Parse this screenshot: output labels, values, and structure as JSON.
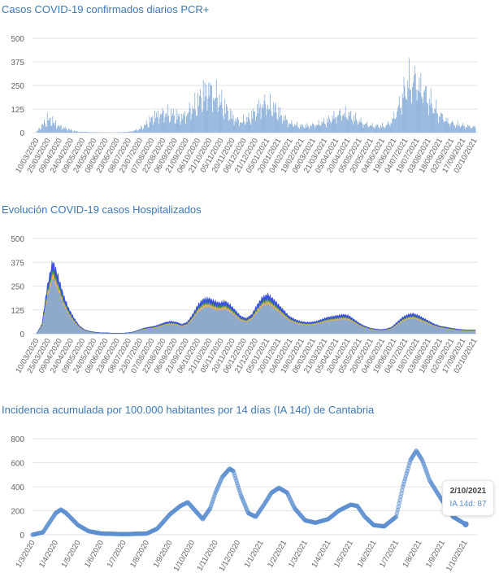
{
  "charts": [
    {
      "title": "Casos COVID-19 confirmados diarios PCR+",
      "type": "bar",
      "color": "#7fa7d6",
      "start_date": "2020-03-10",
      "step_days": 7,
      "end_date": "2021-10-02",
      "yticks": [
        "0",
        "125",
        "250",
        "375",
        "500"
      ],
      "ylim": [
        0,
        500
      ],
      "xticks": [
        "10/03/2020",
        "25/03/2020",
        "09/04/2020",
        "24/04/2020",
        "09/05/2020",
        "24/05/2020",
        "08/06/2020",
        "23/06/2020",
        "08/07/2020",
        "23/07/2020",
        "07/08/2020",
        "22/08/2020",
        "06/09/2020",
        "21/09/2020",
        "06/10/2020",
        "21/10/2020",
        "05/11/2020",
        "20/11/2020",
        "05/12/2020",
        "20/12/2020",
        "04/01/2021",
        "19/01/2021",
        "03/02/2021",
        "18/02/2021",
        "05/03/2021",
        "20/03/2021",
        "04/04/2021",
        "19/04/2021",
        "04/05/2021",
        "19/05/2021",
        "03/06/2021",
        "18/06/2021",
        "03/07/2021",
        "18/07/2021",
        "02/08/2021",
        "17/08/2021",
        "01/09/2021",
        "16/09/2021",
        "01/10/2021"
      ],
      "xtick_labels": [
        "10/03/2020",
        "25/03/2020",
        "09/04/2020",
        "24/04/2020",
        "09/05/2020",
        "24/05/2020",
        "08/06/2020",
        "23/06/2020",
        "08/07/2020",
        "23/07/2020",
        "07/08/2020",
        "22/08/2020",
        "06/09/2020",
        "21/09/2020",
        "06/10/2020",
        "21/10/2020",
        "05/11/2020",
        "20/11/2020",
        "06/12/2020",
        "21/12/2020",
        "05/01/2021",
        "20/01/2021",
        "04/02/2021",
        "19/02/2021",
        "06/03/2021",
        "21/03/2021",
        "05/04/2021",
        "20/04/2021",
        "05/05/2021",
        "20/05/2021",
        "04/06/2021",
        "19/06/2021",
        "04/07/2021",
        "19/07/2021",
        "03/08/2021",
        "18/08/2021",
        "02/09/2021",
        "17/09/2021",
        "02/10/2021"
      ],
      "values": [
        5,
        40,
        80,
        70,
        40,
        30,
        20,
        10,
        5,
        5,
        3,
        3,
        2,
        2,
        2,
        2,
        3,
        5,
        10,
        20,
        40,
        70,
        100,
        110,
        120,
        110,
        100,
        90,
        120,
        150,
        180,
        230,
        260,
        240,
        200,
        150,
        110,
        80,
        70,
        80,
        100,
        140,
        180,
        170,
        150,
        120,
        90,
        60,
        50,
        40,
        40,
        45,
        50,
        60,
        70,
        90,
        110,
        120,
        110,
        90,
        70,
        55,
        45,
        40,
        40,
        45,
        70,
        130,
        220,
        300,
        330,
        300,
        250,
        200,
        150,
        110,
        80,
        60,
        50,
        45,
        40,
        35
      ]
    },
    {
      "title": "Evolución COVID-19 casos  Hospitalizados",
      "type": "area",
      "start_date": "2020-03-10",
      "step_days": 7,
      "yticks": [
        "0",
        "125",
        "250",
        "375",
        "500"
      ],
      "ylim": [
        0,
        500
      ],
      "xtick_labels": [
        "10/03/2020",
        "25/03/2020",
        "09/04/2020",
        "24/04/2020",
        "09/05/2020",
        "24/05/2020",
        "08/06/2020",
        "23/06/2020",
        "08/07/2020",
        "23/07/2020",
        "07/08/2020",
        "22/08/2020",
        "06/09/2020",
        "21/09/2020",
        "06/10/2020",
        "21/10/2020",
        "05/11/2020",
        "20/11/2020",
        "06/12/2020",
        "21/12/2020",
        "05/01/2021",
        "20/01/2021",
        "04/02/2021",
        "19/02/2021",
        "06/03/2021",
        "21/03/2021",
        "05/04/2021",
        "20/04/2021",
        "05/05/2021",
        "20/05/2021",
        "04/06/2021",
        "19/06/2021",
        "04/07/2021",
        "19/07/2021",
        "03/08/2021",
        "18/08/2021",
        "02/09/2021",
        "17/09/2021",
        "02/10/2021"
      ],
      "total": [
        0,
        50,
        250,
        380,
        300,
        200,
        130,
        80,
        40,
        20,
        12,
        8,
        5,
        5,
        3,
        3,
        3,
        5,
        10,
        20,
        30,
        35,
        40,
        50,
        60,
        65,
        60,
        50,
        60,
        100,
        150,
        180,
        185,
        170,
        160,
        170,
        150,
        120,
        90,
        80,
        100,
        150,
        190,
        205,
        180,
        150,
        120,
        90,
        75,
        65,
        60,
        60,
        65,
        75,
        85,
        90,
        95,
        100,
        95,
        75,
        55,
        40,
        30,
        25,
        22,
        25,
        35,
        60,
        85,
        100,
        105,
        95,
        80,
        65,
        50,
        40,
        35,
        30,
        25,
        22,
        20
      ],
      "series": [
        {
          "color": "#8fa9cc",
          "share": 0.78
        },
        {
          "color": "#f0b050",
          "share": 0.07
        },
        {
          "color": "#3a9a4a",
          "share": 0.05
        },
        {
          "color": "#3a4fe0",
          "share": 0.1
        }
      ]
    },
    {
      "title": "Incidencia acumulada por 100.000 habitantes por 14 días (IA 14d) de Cantabria",
      "type": "scatter",
      "color": "#5b8fd0",
      "yticks": [
        "0",
        "200",
        "400",
        "600",
        "800"
      ],
      "ylim": [
        0,
        800
      ],
      "xtick_labels": [
        "1/3/2020",
        "1/4/2020",
        "1/5/2020",
        "1/6/2020",
        "1/7/2020",
        "1/8/2020",
        "1/9/2020",
        "1/10/2020",
        "1/11/2020",
        "1/12/2020",
        "1/1/2021",
        "1/2/2021",
        "1/3/2021",
        "1/4/2021",
        "1/5/2021",
        "1/6/2021",
        "1/7/2021",
        "1/8/2021",
        "1/9/2021",
        "1/10/2021"
      ],
      "points": [
        [
          "2020-03-01",
          0
        ],
        [
          "2020-03-15",
          20
        ],
        [
          "2020-04-01",
          180
        ],
        [
          "2020-04-08",
          210
        ],
        [
          "2020-04-15",
          180
        ],
        [
          "2020-05-01",
          80
        ],
        [
          "2020-05-15",
          30
        ],
        [
          "2020-06-01",
          10
        ],
        [
          "2020-07-01",
          5
        ],
        [
          "2020-08-01",
          10
        ],
        [
          "2020-08-15",
          50
        ],
        [
          "2020-09-01",
          170
        ],
        [
          "2020-09-15",
          240
        ],
        [
          "2020-09-25",
          270
        ],
        [
          "2020-10-05",
          200
        ],
        [
          "2020-10-15",
          130
        ],
        [
          "2020-10-25",
          220
        ],
        [
          "2020-11-01",
          350
        ],
        [
          "2020-11-10",
          480
        ],
        [
          "2020-11-20",
          550
        ],
        [
          "2020-11-25",
          530
        ],
        [
          "2020-12-05",
          330
        ],
        [
          "2020-12-15",
          180
        ],
        [
          "2020-12-25",
          150
        ],
        [
          "2021-01-05",
          250
        ],
        [
          "2021-01-15",
          350
        ],
        [
          "2021-01-25",
          390
        ],
        [
          "2021-02-05",
          350
        ],
        [
          "2021-02-15",
          220
        ],
        [
          "2021-03-01",
          120
        ],
        [
          "2021-03-15",
          100
        ],
        [
          "2021-04-01",
          130
        ],
        [
          "2021-04-15",
          200
        ],
        [
          "2021-05-01",
          250
        ],
        [
          "2021-05-10",
          240
        ],
        [
          "2021-05-20",
          150
        ],
        [
          "2021-06-01",
          80
        ],
        [
          "2021-06-15",
          70
        ],
        [
          "2021-07-01",
          150
        ],
        [
          "2021-07-10",
          400
        ],
        [
          "2021-07-20",
          620
        ],
        [
          "2021-07-28",
          700
        ],
        [
          "2021-08-05",
          620
        ],
        [
          "2021-08-15",
          450
        ],
        [
          "2021-09-01",
          280
        ],
        [
          "2021-09-15",
          150
        ],
        [
          "2021-10-02",
          87
        ]
      ],
      "tooltip": {
        "date": "2/10/2021",
        "label": "IA 14d: 87"
      }
    }
  ]
}
